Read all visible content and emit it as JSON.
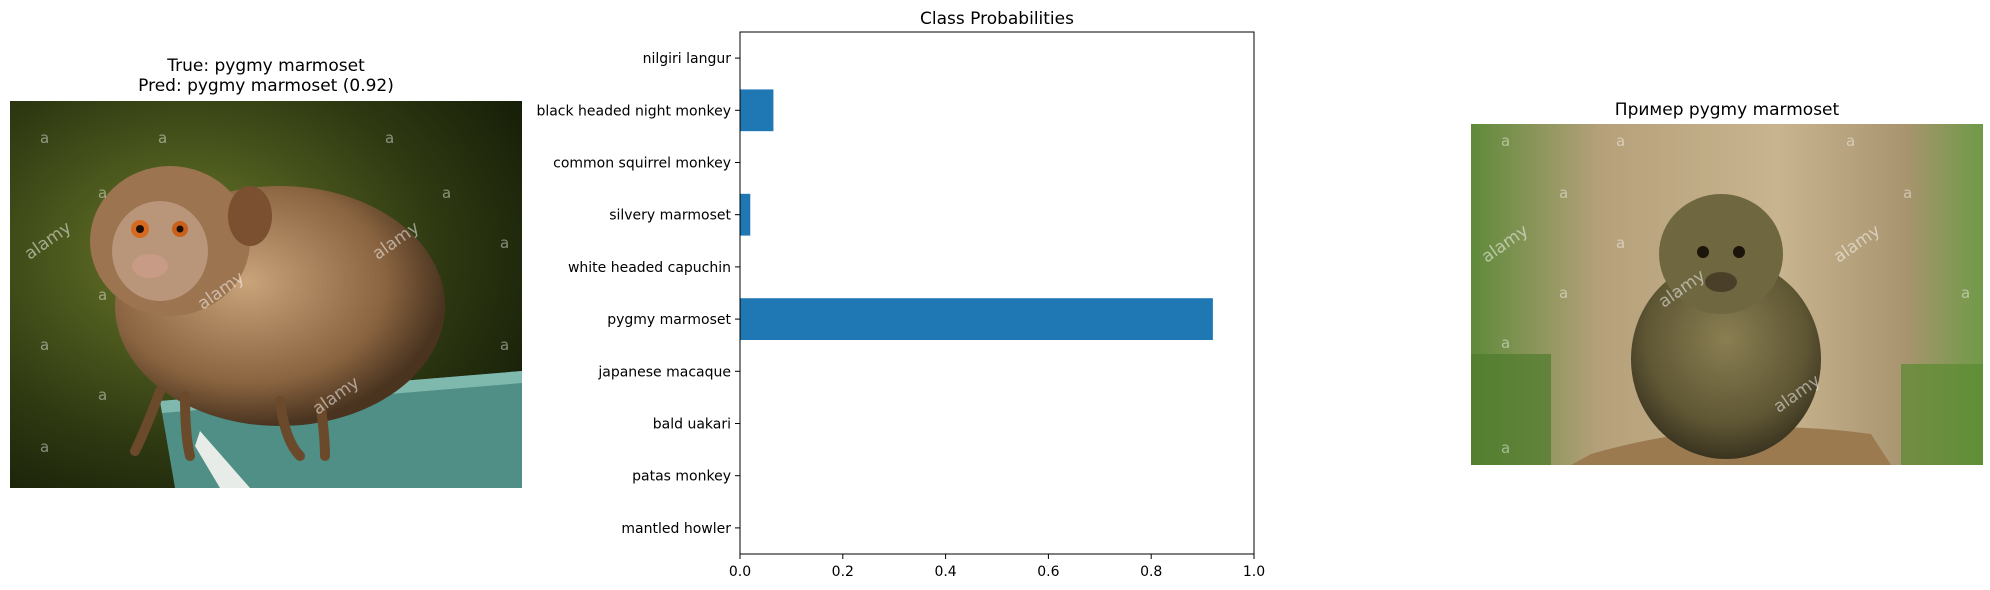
{
  "left_panel": {
    "title_line1": "True: pygmy marmoset",
    "title_line2": "Pred: pygmy marmoset (0.92)",
    "photo_icon": "pygmy-marmoset-photo"
  },
  "right_panel": {
    "title": "Пример pygmy marmoset",
    "photo_icon": "pygmy-marmoset-photo"
  },
  "watermark": {
    "text": "alamy",
    "letter": "a"
  },
  "colors": {
    "bar": "#1f77b4",
    "axis": "#000000"
  },
  "chart_data": {
    "type": "bar",
    "orientation": "horizontal",
    "title": "Class Probabilities",
    "categories": [
      "mantled howler",
      "patas monkey",
      "bald uakari",
      "japanese macaque",
      "pygmy marmoset",
      "white headed capuchin",
      "silvery marmoset",
      "common squirrel monkey",
      "black headed night monkey",
      "nilgiri langur"
    ],
    "values": [
      0.0,
      0.0,
      0.0,
      0.0,
      0.92,
      0.0,
      0.02,
      0.0,
      0.065,
      0.0
    ],
    "xlim": [
      0.0,
      1.0
    ],
    "xticks": [
      "0.0",
      "0.2",
      "0.4",
      "0.6",
      "0.8",
      "1.0"
    ],
    "xlabel": "",
    "ylabel": "",
    "grid": false,
    "legend": "none"
  }
}
